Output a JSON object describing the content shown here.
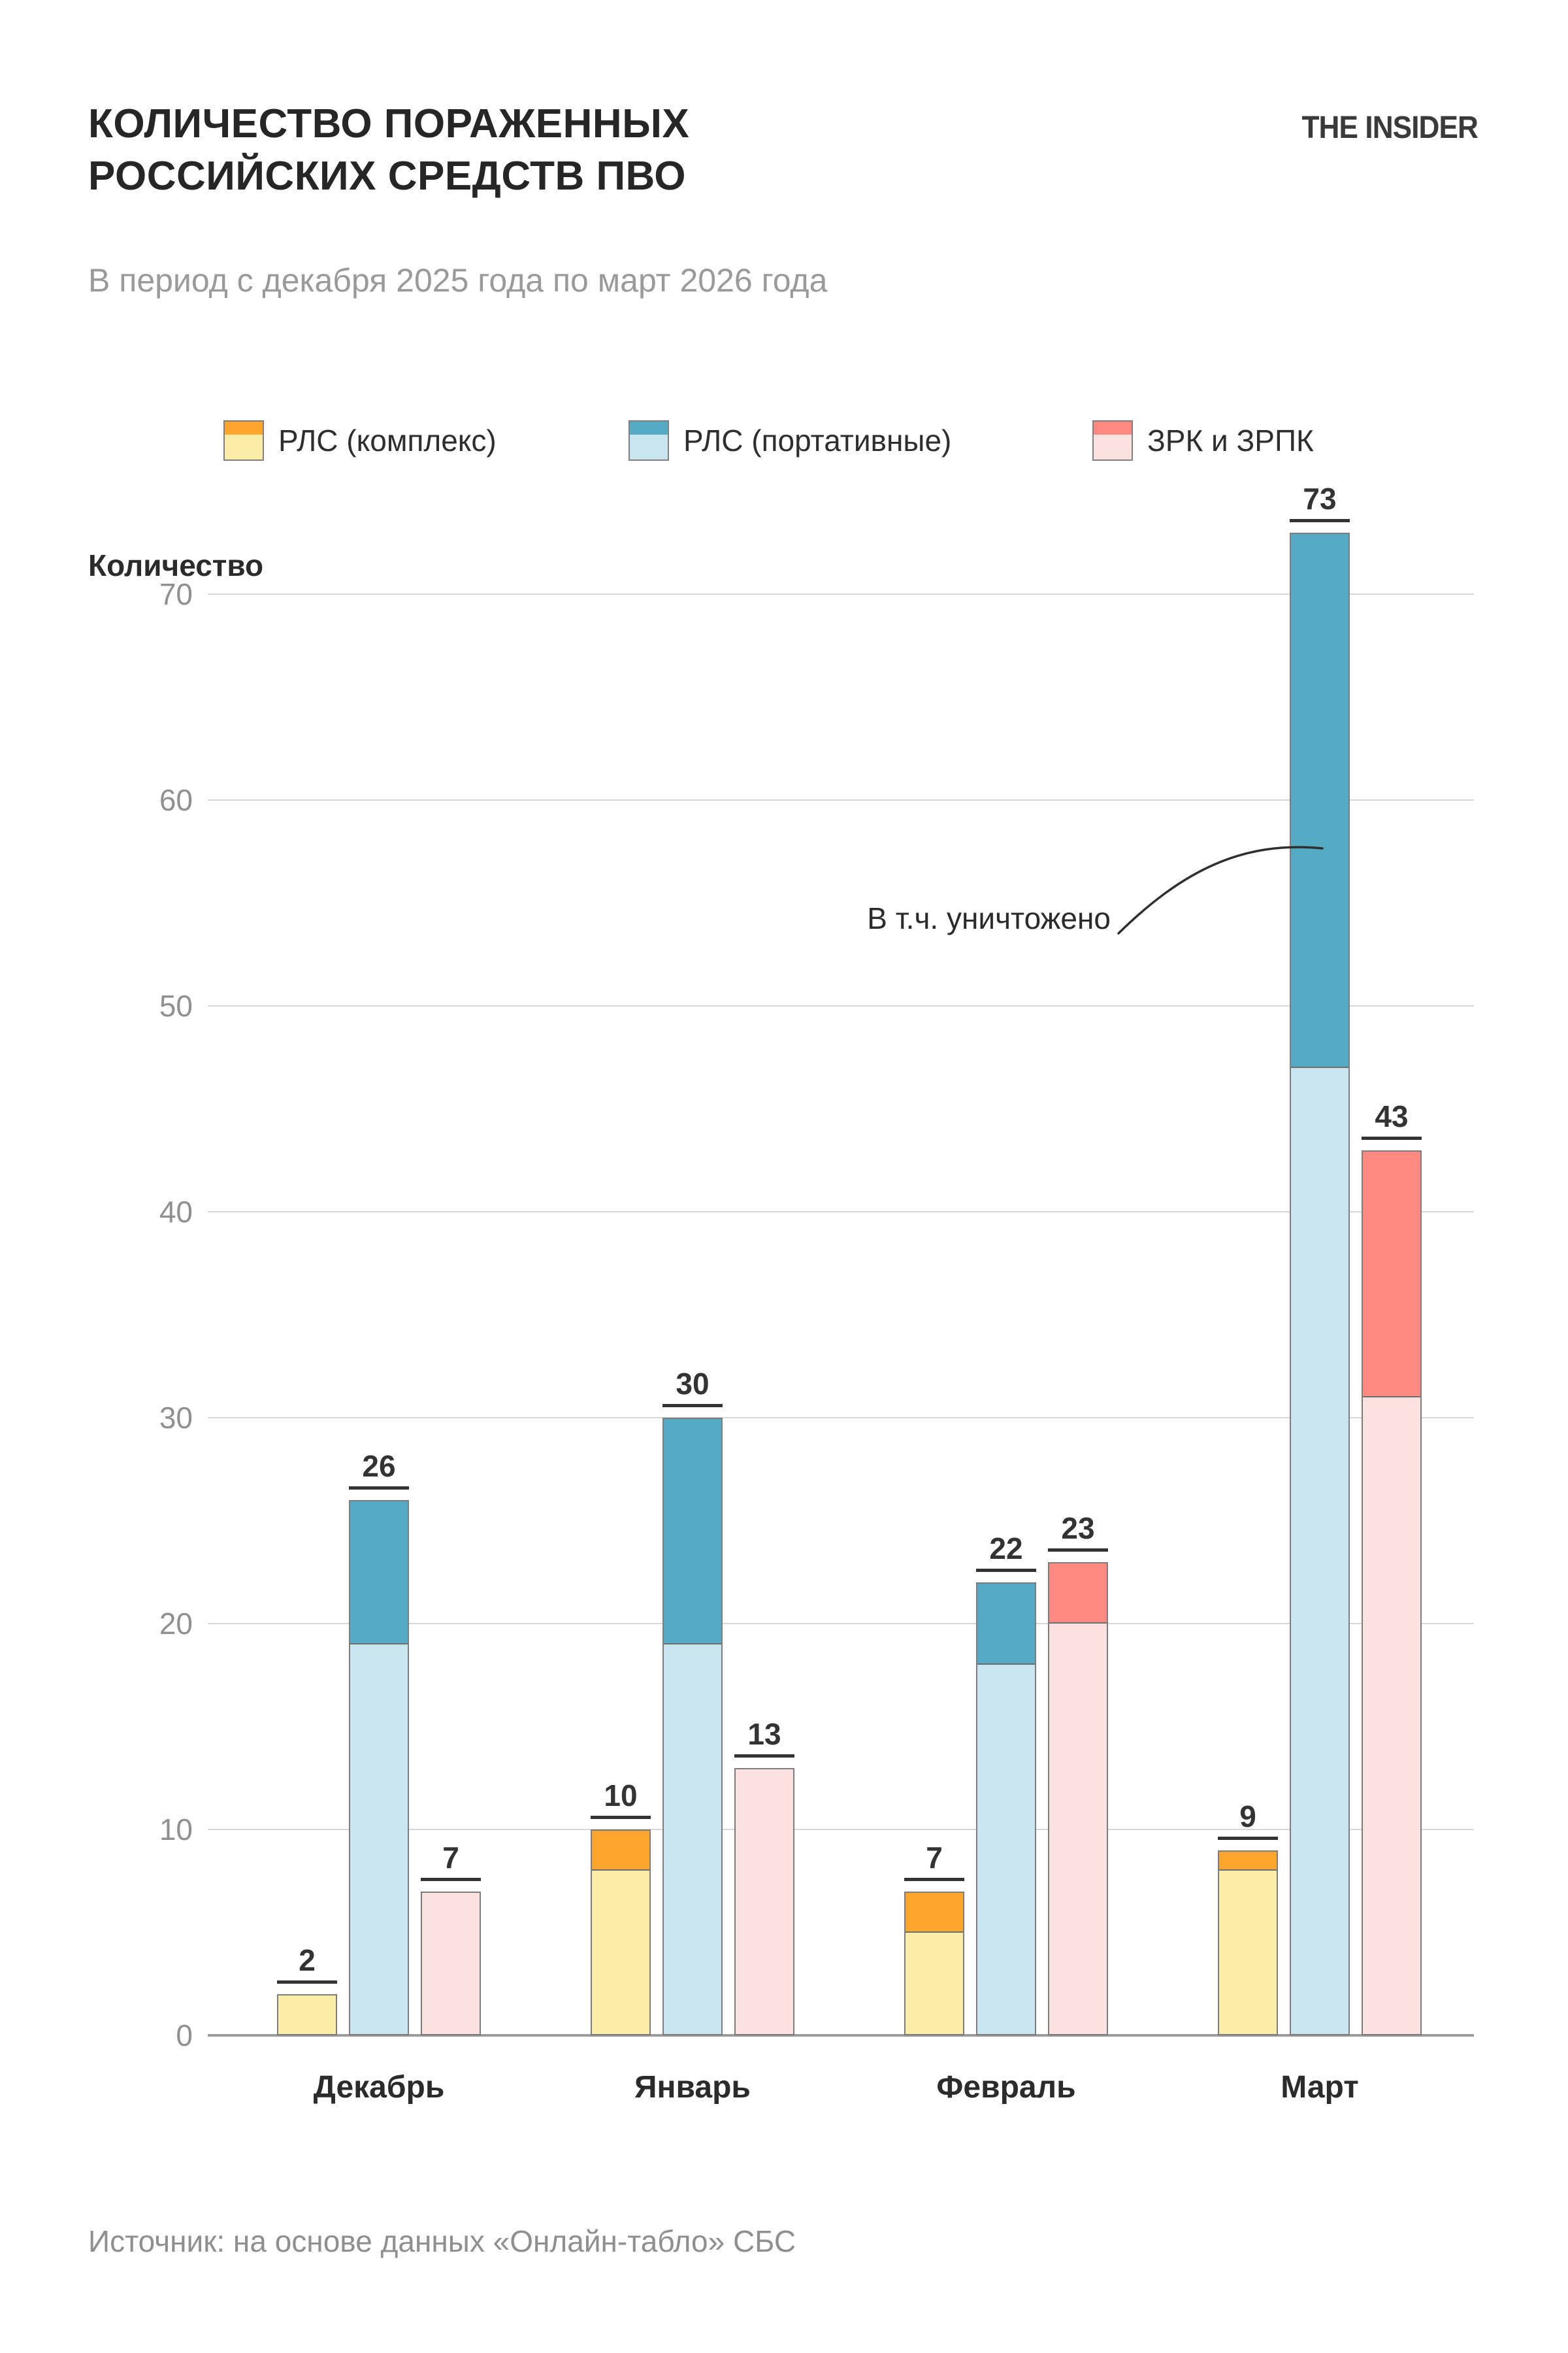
{
  "header": {
    "title": "КОЛИЧЕСТВО ПОРАЖЕННЫХ\nРОССИЙСКИХ СРЕДСТВ ПВО",
    "logo": "THE INSIDER",
    "subtitle": "В период с декабря 2025 года по март 2026 года"
  },
  "footer": {
    "source": "Источник: на основе данных «Онлайн-табло» СБС"
  },
  "colors": {
    "grid": "#d7d7d7",
    "axis": "#9c9c9c",
    "bar_border": "#7d7d7d",
    "value_label": "#333333",
    "text_dark": "#2b2b2b",
    "text_gray": "#9a9a9a"
  },
  "chart_data": {
    "type": "bar",
    "title": "КОЛИЧЕСТВО ПОРАЖЕННЫХ РОССИЙСКИХ СРЕДСТВ ПВО",
    "subtitle": "В период с декабря 2025 года по март 2026 года",
    "ylabel": "Количество",
    "yticks": [
      0,
      10,
      20,
      30,
      40,
      50,
      60,
      70
    ],
    "ylim": [
      0,
      73
    ],
    "grid": "horizontal",
    "legend_position": "top",
    "categories": [
      "Декабрь",
      "Январь",
      "Февраль",
      "Март"
    ],
    "annotation": "В т.ч. уничтожено",
    "annotation_note": "dark top segment of each bar = destroyed portion",
    "series": [
      {
        "name": "РЛС (комплекс)",
        "color_hit": "#FBEDA7",
        "color_destroyed": "#FCA62F",
        "totals": [
          2,
          10,
          7,
          9
        ],
        "destroyed": [
          0,
          2,
          2,
          1
        ]
      },
      {
        "name": "РЛС (портативные)",
        "color_hit": "#C9E6F0",
        "color_destroyed": "#54ABC3",
        "totals": [
          26,
          30,
          22,
          73
        ],
        "destroyed": [
          7,
          11,
          4,
          26
        ]
      },
      {
        "name": "ЗРК и ЗРПК",
        "color_hit": "#FBE1DF",
        "color_destroyed": "#FC8A80",
        "totals": [
          7,
          13,
          23,
          43
        ],
        "destroyed": [
          0,
          0,
          3,
          12
        ]
      }
    ]
  }
}
